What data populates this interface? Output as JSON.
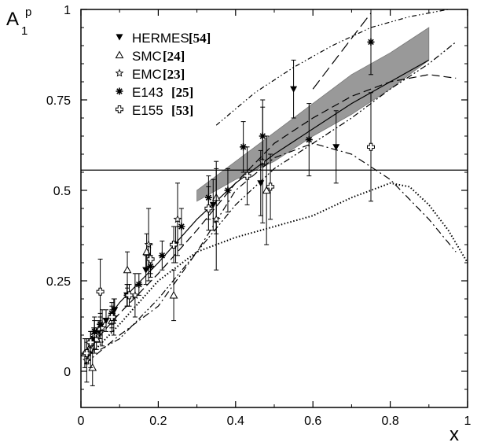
{
  "chart_data": {
    "type": "scatter",
    "title": "",
    "xlabel": "x",
    "ylabel": {
      "main": "A",
      "sub": "1",
      "sup": "p"
    },
    "xlim": [
      0,
      1
    ],
    "ylim": [
      -0.1,
      1
    ],
    "x_ticks": [
      0,
      0.2,
      0.4,
      0.6,
      0.8,
      1
    ],
    "x_tick_labels": [
      "0",
      "0.2",
      "0.4",
      "0.6",
      "0.8",
      "1"
    ],
    "y_ticks": [
      0,
      0.25,
      0.5,
      0.75,
      1
    ],
    "y_tick_labels": [
      "0",
      "0.25",
      "0.5",
      "0.75",
      "1"
    ],
    "grid": false,
    "legend_position": "top-left",
    "reference_line_y": 0.556,
    "series": [
      {
        "name": "HERMES",
        "ref": "[54]",
        "marker": "filled-triangle-down",
        "points": [
          {
            "x": 0.033,
            "y": 0.09,
            "err": 0.03
          },
          {
            "x": 0.047,
            "y": 0.11,
            "err": 0.03
          },
          {
            "x": 0.065,
            "y": 0.14,
            "err": 0.03
          },
          {
            "x": 0.087,
            "y": 0.17,
            "err": 0.03
          },
          {
            "x": 0.119,
            "y": 0.21,
            "err": 0.03
          },
          {
            "x": 0.168,
            "y": 0.28,
            "err": 0.04
          },
          {
            "x": 0.245,
            "y": 0.35,
            "err": 0.05
          },
          {
            "x": 0.342,
            "y": 0.46,
            "err": 0.07
          },
          {
            "x": 0.465,
            "y": 0.52,
            "err": 0.09
          },
          {
            "x": 0.55,
            "y": 0.78,
            "err": 0.08
          },
          {
            "x": 0.66,
            "y": 0.62,
            "err": 0.1
          }
        ]
      },
      {
        "name": "SMC",
        "ref": "[24]",
        "marker": "open-triangle",
        "points": [
          {
            "x": 0.01,
            "y": 0.05,
            "err": 0.04
          },
          {
            "x": 0.02,
            "y": 0.06,
            "err": 0.03
          },
          {
            "x": 0.03,
            "y": 0.01,
            "err": 0.05
          },
          {
            "x": 0.04,
            "y": 0.09,
            "err": 0.03
          },
          {
            "x": 0.05,
            "y": 0.12,
            "err": 0.03
          },
          {
            "x": 0.08,
            "y": 0.14,
            "err": 0.03
          },
          {
            "x": 0.12,
            "y": 0.28,
            "err": 0.05
          },
          {
            "x": 0.17,
            "y": 0.33,
            "err": 0.05
          },
          {
            "x": 0.24,
            "y": 0.21,
            "err": 0.07
          },
          {
            "x": 0.35,
            "y": 0.48,
            "err": 0.1
          },
          {
            "x": 0.48,
            "y": 0.5,
            "err": 0.15
          }
        ]
      },
      {
        "name": "EMC",
        "ref": "[23]",
        "marker": "open-star",
        "points": [
          {
            "x": 0.015,
            "y": 0.03,
            "err": 0.06
          },
          {
            "x": 0.025,
            "y": 0.06,
            "err": 0.05
          },
          {
            "x": 0.035,
            "y": 0.1,
            "err": 0.05
          },
          {
            "x": 0.055,
            "y": 0.12,
            "err": 0.05
          },
          {
            "x": 0.085,
            "y": 0.15,
            "err": 0.05
          },
          {
            "x": 0.14,
            "y": 0.21,
            "err": 0.06
          },
          {
            "x": 0.175,
            "y": 0.35,
            "err": 0.1
          },
          {
            "x": 0.25,
            "y": 0.42,
            "err": 0.1
          },
          {
            "x": 0.35,
            "y": 0.42,
            "err": 0.14
          },
          {
            "x": 0.47,
            "y": 0.58,
            "err": 0.17
          }
        ]
      },
      {
        "name": "E143",
        "ref": "[25]",
        "marker": "asterisk",
        "points": [
          {
            "x": 0.035,
            "y": 0.11,
            "err": 0.03
          },
          {
            "x": 0.05,
            "y": 0.13,
            "err": 0.03
          },
          {
            "x": 0.08,
            "y": 0.16,
            "err": 0.03
          },
          {
            "x": 0.12,
            "y": 0.21,
            "err": 0.03
          },
          {
            "x": 0.15,
            "y": 0.24,
            "err": 0.03
          },
          {
            "x": 0.18,
            "y": 0.29,
            "err": 0.03
          },
          {
            "x": 0.21,
            "y": 0.32,
            "err": 0.04
          },
          {
            "x": 0.26,
            "y": 0.4,
            "err": 0.05
          },
          {
            "x": 0.33,
            "y": 0.48,
            "err": 0.06
          },
          {
            "x": 0.38,
            "y": 0.5,
            "err": 0.06
          },
          {
            "x": 0.42,
            "y": 0.62,
            "err": 0.07
          },
          {
            "x": 0.47,
            "y": 0.65,
            "err": 0.08
          },
          {
            "x": 0.59,
            "y": 0.64,
            "err": 0.1
          },
          {
            "x": 0.75,
            "y": 0.91,
            "err": 0.09
          }
        ]
      },
      {
        "name": "E155",
        "ref": "[53]",
        "marker": "open-cross",
        "points": [
          {
            "x": 0.015,
            "y": 0.05,
            "err": 0.03
          },
          {
            "x": 0.025,
            "y": 0.08,
            "err": 0.03
          },
          {
            "x": 0.05,
            "y": 0.22,
            "err": 0.09
          },
          {
            "x": 0.08,
            "y": 0.15,
            "err": 0.03
          },
          {
            "x": 0.125,
            "y": 0.21,
            "err": 0.03
          },
          {
            "x": 0.18,
            "y": 0.31,
            "err": 0.04
          },
          {
            "x": 0.24,
            "y": 0.35,
            "err": 0.05
          },
          {
            "x": 0.33,
            "y": 0.45,
            "err": 0.06
          },
          {
            "x": 0.43,
            "y": 0.54,
            "err": 0.08
          },
          {
            "x": 0.49,
            "y": 0.51,
            "err": 0.09
          },
          {
            "x": 0.75,
            "y": 0.62,
            "err": 0.15
          }
        ]
      }
    ],
    "curves": [
      {
        "style": "solid",
        "points": [
          [
            0.01,
            0.05
          ],
          [
            0.05,
            0.12
          ],
          [
            0.1,
            0.19
          ],
          [
            0.2,
            0.3
          ],
          [
            0.3,
            0.42
          ],
          [
            0.4,
            0.52
          ],
          [
            0.5,
            0.6
          ],
          [
            0.6,
            0.67
          ],
          [
            0.7,
            0.74
          ],
          [
            0.8,
            0.8
          ],
          [
            0.9,
            0.86
          ]
        ]
      },
      {
        "style": "dashed",
        "points": [
          [
            0.01,
            0.04
          ],
          [
            0.05,
            0.1
          ],
          [
            0.1,
            0.16
          ],
          [
            0.2,
            0.27
          ],
          [
            0.3,
            0.39
          ],
          [
            0.4,
            0.52
          ],
          [
            0.5,
            0.63
          ],
          [
            0.6,
            0.7
          ],
          [
            0.7,
            0.76
          ],
          [
            0.8,
            0.8
          ],
          [
            0.9,
            0.82
          ],
          [
            0.97,
            0.81
          ]
        ]
      },
      {
        "style": "dotted",
        "points": [
          [
            0.01,
            0.03
          ],
          [
            0.1,
            0.13
          ],
          [
            0.2,
            0.25
          ],
          [
            0.3,
            0.33
          ],
          [
            0.4,
            0.37
          ],
          [
            0.5,
            0.4
          ],
          [
            0.6,
            0.43
          ],
          [
            0.7,
            0.48
          ],
          [
            0.8,
            0.52
          ],
          [
            0.85,
            0.51
          ],
          [
            0.9,
            0.46
          ],
          [
            0.95,
            0.39
          ],
          [
            1.0,
            0.3
          ]
        ]
      },
      {
        "style": "dash-dot",
        "points": [
          [
            0.01,
            0.02
          ],
          [
            0.1,
            0.1
          ],
          [
            0.2,
            0.18
          ],
          [
            0.3,
            0.33
          ],
          [
            0.4,
            0.5
          ],
          [
            0.5,
            0.59
          ],
          [
            0.6,
            0.63
          ],
          [
            0.7,
            0.6
          ],
          [
            0.8,
            0.53
          ],
          [
            0.9,
            0.42
          ],
          [
            0.97,
            0.33
          ]
        ]
      },
      {
        "style": "dash-dot-dot",
        "points": [
          [
            0.05,
            0.06
          ],
          [
            0.1,
            0.09
          ],
          [
            0.2,
            0.2
          ],
          [
            0.3,
            0.33
          ],
          [
            0.4,
            0.46
          ],
          [
            0.5,
            0.56
          ],
          [
            0.6,
            0.63
          ],
          [
            0.7,
            0.7
          ],
          [
            0.8,
            0.78
          ],
          [
            0.9,
            0.85
          ],
          [
            0.97,
            0.91
          ]
        ]
      },
      {
        "style": "dash-dot-dot-sparse",
        "points": [
          [
            0.35,
            0.68
          ],
          [
            0.45,
            0.77
          ],
          [
            0.55,
            0.84
          ],
          [
            0.65,
            0.9
          ],
          [
            0.75,
            0.95
          ],
          [
            0.85,
            0.98
          ],
          [
            0.95,
            1.0
          ]
        ]
      },
      {
        "style": "long-dash",
        "points": [
          [
            0.6,
            0.78
          ],
          [
            0.65,
            0.85
          ],
          [
            0.7,
            0.92
          ],
          [
            0.75,
            0.99
          ]
        ]
      }
    ],
    "band": {
      "color": "#999999",
      "lower": [
        [
          0.3,
          0.47
        ],
        [
          0.4,
          0.53
        ],
        [
          0.5,
          0.58
        ],
        [
          0.6,
          0.65
        ],
        [
          0.7,
          0.71
        ],
        [
          0.8,
          0.78
        ],
        [
          0.9,
          0.86
        ]
      ],
      "upper": [
        [
          0.3,
          0.5
        ],
        [
          0.4,
          0.58
        ],
        [
          0.5,
          0.66
        ],
        [
          0.6,
          0.74
        ],
        [
          0.7,
          0.82
        ],
        [
          0.8,
          0.88
        ],
        [
          0.9,
          0.95
        ]
      ]
    }
  }
}
